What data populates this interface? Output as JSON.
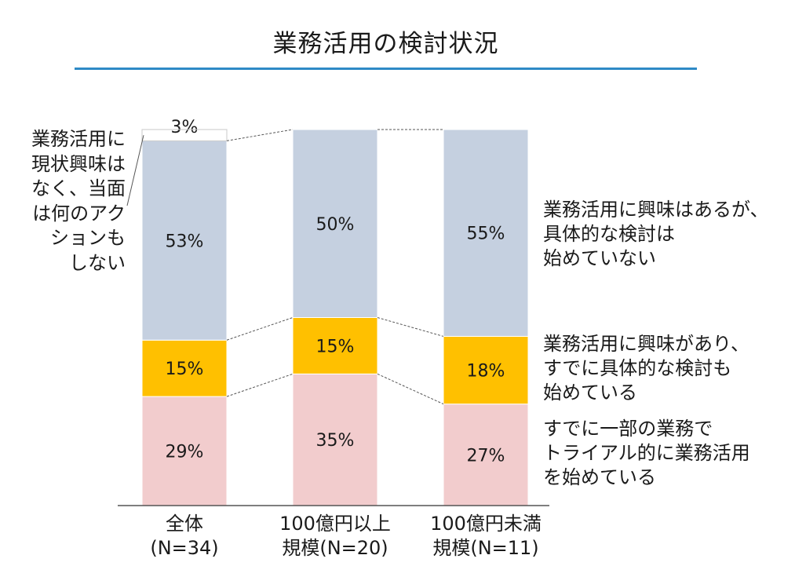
{
  "chart_data": {
    "type": "bar",
    "stacked": true,
    "title": "業務活用の検討状況",
    "categories": [
      {
        "line1": "全体",
        "line2": "(N=34)"
      },
      {
        "line1": "100億円以上",
        "line2": "規模(N=20)"
      },
      {
        "line1": "100億円未満",
        "line2": "規模(N=11)"
      }
    ],
    "series": [
      {
        "name": "すでに一部の業務でトライアル的に業務活用を始めている",
        "color": "#f2cccd",
        "values": [
          29,
          35,
          27
        ],
        "labels": [
          "29%",
          "35%",
          "27%"
        ]
      },
      {
        "name": "業務活用に興味があり、すでに具体的な検討も始めている",
        "color": "#ffc000",
        "values": [
          15,
          15,
          18
        ],
        "labels": [
          "15%",
          "15%",
          "18%"
        ]
      },
      {
        "name": "業務活用に興味はあるが、具体的な検討は始めていない",
        "color": "#c5d0e0",
        "values": [
          53,
          50,
          55
        ],
        "labels": [
          "53%",
          "50%",
          "55%"
        ]
      },
      {
        "name": "業務活用に現状興味はなく、当面は何のアクションもしない",
        "color": "#ffffff",
        "values": [
          3,
          0,
          0
        ],
        "labels": [
          "3%",
          "",
          ""
        ]
      }
    ],
    "ylim": [
      0,
      100
    ],
    "legend": [
      {
        "lines": [
          "業務活用に興味はあるが、",
          "具体的な検討は",
          "始めていない"
        ]
      },
      {
        "lines": [
          "業務活用に興味があり、",
          "すでに具体的な検討も",
          "始めている"
        ]
      },
      {
        "lines": [
          "すでに一部の業務で",
          "トライアル的に業務活用",
          "を始めている"
        ]
      }
    ],
    "annotation": {
      "lines": [
        "業務活用に",
        "現状興味は",
        "なく、当面",
        "は何のアク",
        "ションも",
        "しない"
      ]
    }
  }
}
